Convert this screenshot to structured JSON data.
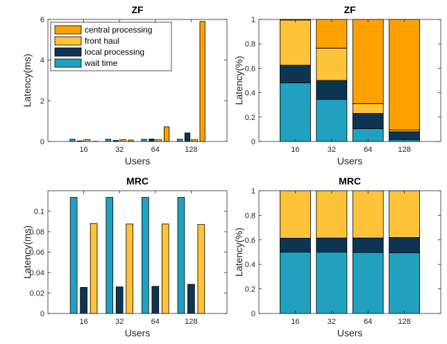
{
  "colors": {
    "wait_time": "#21a0c0",
    "local_processing": "#0d3552",
    "front_haul": "#ffc33a",
    "central_processing": "#ffa100"
  },
  "chart_data": [
    {
      "type": "bar",
      "mode": "grouped",
      "title": "ZF",
      "xlabel": "Users",
      "ylabel": "Latency(ms)",
      "categories": [
        "16",
        "32",
        "64",
        "128"
      ],
      "ylim": [
        0,
        6
      ],
      "yticks": [
        "0",
        "2",
        "4",
        "6"
      ],
      "legend": {
        "placement": "top-left",
        "entries": [
          "central processing",
          "front haul",
          "local processing",
          "wait time"
        ]
      },
      "series": [
        {
          "name": "wait time",
          "color_key": "wait_time",
          "values": [
            0.11,
            0.11,
            0.11,
            0.11
          ]
        },
        {
          "name": "local processing",
          "color_key": "local_processing",
          "values": [
            0.03,
            0.05,
            0.12,
            0.42
          ]
        },
        {
          "name": "front haul",
          "color_key": "front_haul",
          "values": [
            0.09,
            0.09,
            0.09,
            0.09
          ]
        },
        {
          "name": "central processing",
          "color_key": "central_processing",
          "values": [
            0.01,
            0.07,
            0.72,
            5.9
          ]
        }
      ]
    },
    {
      "type": "bar",
      "mode": "stacked",
      "title": "ZF",
      "xlabel": "Users",
      "ylabel": "Latency(%)",
      "categories": [
        "16",
        "32",
        "64",
        "128"
      ],
      "ylim": [
        0,
        1
      ],
      "yticks": [
        "0",
        "0.2",
        "0.4",
        "0.6",
        "0.8",
        "1"
      ],
      "series": [
        {
          "name": "wait time",
          "color_key": "wait_time",
          "values": [
            0.48,
            0.345,
            0.105,
            0.015
          ]
        },
        {
          "name": "local processing",
          "color_key": "local_processing",
          "values": [
            0.145,
            0.155,
            0.125,
            0.065
          ]
        },
        {
          "name": "front haul",
          "color_key": "front_haul",
          "values": [
            0.37,
            0.265,
            0.08,
            0.015
          ]
        },
        {
          "name": "central processing",
          "color_key": "central_processing",
          "values": [
            0.005,
            0.235,
            0.69,
            0.905
          ]
        }
      ]
    },
    {
      "type": "bar",
      "mode": "grouped",
      "title": "MRC",
      "xlabel": "Users",
      "ylabel": "Latency(ms)",
      "categories": [
        "16",
        "32",
        "64",
        "128"
      ],
      "ylim": [
        0,
        0.12
      ],
      "yticks": [
        "0",
        "0.02",
        "0.04",
        "0.06",
        "0.08",
        "0.1"
      ],
      "series": [
        {
          "name": "wait time",
          "color_key": "wait_time",
          "values": [
            0.1135,
            0.1135,
            0.1135,
            0.1135
          ]
        },
        {
          "name": "local processing",
          "color_key": "local_processing",
          "values": [
            0.0255,
            0.026,
            0.0265,
            0.0285
          ]
        },
        {
          "name": "front haul",
          "color_key": "front_haul",
          "values": [
            0.088,
            0.0875,
            0.0875,
            0.087
          ]
        }
      ]
    },
    {
      "type": "bar",
      "mode": "stacked",
      "title": "MRC",
      "xlabel": "Users",
      "ylabel": "Latency(%)",
      "categories": [
        "16",
        "32",
        "64",
        "128"
      ],
      "ylim": [
        0,
        1
      ],
      "yticks": [
        "0",
        "0.2",
        "0.4",
        "0.6",
        "0.8",
        "1"
      ],
      "series": [
        {
          "name": "wait time",
          "color_key": "wait_time",
          "values": [
            0.5,
            0.5,
            0.497,
            0.495
          ]
        },
        {
          "name": "local processing",
          "color_key": "local_processing",
          "values": [
            0.113,
            0.115,
            0.118,
            0.124
          ]
        },
        {
          "name": "front haul",
          "color_key": "front_haul",
          "values": [
            0.387,
            0.385,
            0.385,
            0.381
          ]
        }
      ]
    }
  ]
}
